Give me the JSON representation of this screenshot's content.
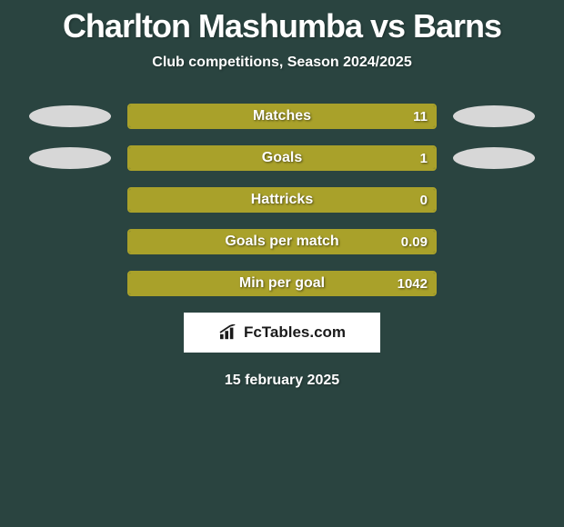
{
  "background_color": "#2a4440",
  "title": {
    "text": "Charlton Mashumba vs Barns",
    "fontsize": 36,
    "color": "#ffffff"
  },
  "subtitle": {
    "text": "Club competitions, Season 2024/2025",
    "fontsize": 16,
    "color": "#ffffff"
  },
  "ellipse": {
    "left_color": "#d7d7d7",
    "right_color": "#d7d7d7",
    "width": 90,
    "height": 24
  },
  "bar_style": {
    "track_width": 340,
    "track_height": 28,
    "border_color": "#a9a12a",
    "fill_color": "#a9a12a",
    "border_radius": 4,
    "label_fontsize": 16,
    "value_fontsize": 15,
    "text_color": "#ffffff"
  },
  "rows": [
    {
      "label": "Matches",
      "value": "11",
      "fill_pct": 100,
      "show_side_ellipses": true
    },
    {
      "label": "Goals",
      "value": "1",
      "fill_pct": 100,
      "show_side_ellipses": true
    },
    {
      "label": "Hattricks",
      "value": "0",
      "fill_pct": 100,
      "show_side_ellipses": false
    },
    {
      "label": "Goals per match",
      "value": "0.09",
      "fill_pct": 100,
      "show_side_ellipses": false
    },
    {
      "label": "Min per goal",
      "value": "1042",
      "fill_pct": 100,
      "show_side_ellipses": false
    }
  ],
  "logo": {
    "text": "FcTables.com",
    "fontsize": 17,
    "box_bg": "#ffffff",
    "text_color": "#1a1a1a",
    "icon_color": "#1a1a1a"
  },
  "footer": {
    "text": "15 february 2025",
    "fontsize": 16,
    "color": "#ffffff"
  }
}
